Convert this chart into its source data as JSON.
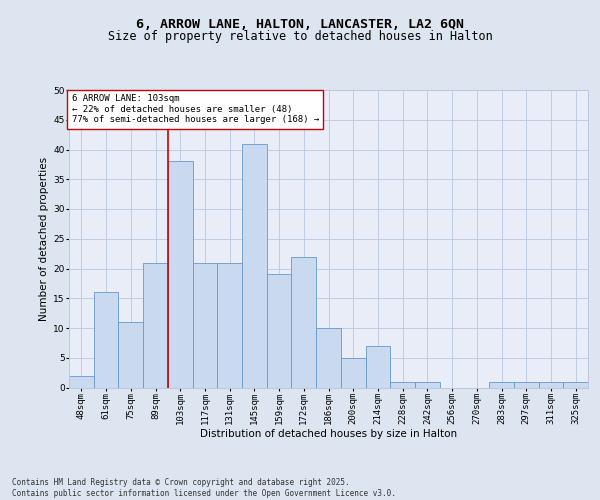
{
  "title_line1": "6, ARROW LANE, HALTON, LANCASTER, LA2 6QN",
  "title_line2": "Size of property relative to detached houses in Halton",
  "xlabel": "Distribution of detached houses by size in Halton",
  "ylabel": "Number of detached properties",
  "categories": [
    "48sqm",
    "61sqm",
    "75sqm",
    "89sqm",
    "103sqm",
    "117sqm",
    "131sqm",
    "145sqm",
    "159sqm",
    "172sqm",
    "186sqm",
    "200sqm",
    "214sqm",
    "228sqm",
    "242sqm",
    "256sqm",
    "270sqm",
    "283sqm",
    "297sqm",
    "311sqm",
    "325sqm"
  ],
  "values": [
    2,
    16,
    11,
    21,
    38,
    21,
    21,
    41,
    19,
    22,
    10,
    5,
    7,
    1,
    1,
    0,
    0,
    1,
    1,
    1,
    1
  ],
  "bar_color": "#c9d9ef",
  "bar_edge_color": "#6699cc",
  "vline_index": 4,
  "vline_color": "#cc0000",
  "annotation_text": "6 ARROW LANE: 103sqm\n← 22% of detached houses are smaller (48)\n77% of semi-detached houses are larger (168) →",
  "annotation_box_facecolor": "#ffffff",
  "annotation_box_edgecolor": "#cc0000",
  "ylim": [
    0,
    50
  ],
  "yticks": [
    0,
    5,
    10,
    15,
    20,
    25,
    30,
    35,
    40,
    45,
    50
  ],
  "bg_color": "#dde5f0",
  "plot_bg_color": "#e8edf8",
  "grid_color": "#b8c8de",
  "footer_text": "Contains HM Land Registry data © Crown copyright and database right 2025.\nContains public sector information licensed under the Open Government Licence v3.0.",
  "title_fontsize": 9.5,
  "subtitle_fontsize": 8.5,
  "axis_label_fontsize": 7.5,
  "tick_fontsize": 6.5,
  "annotation_fontsize": 6.5,
  "footer_fontsize": 5.5,
  "ylabel_fontsize": 7.5
}
